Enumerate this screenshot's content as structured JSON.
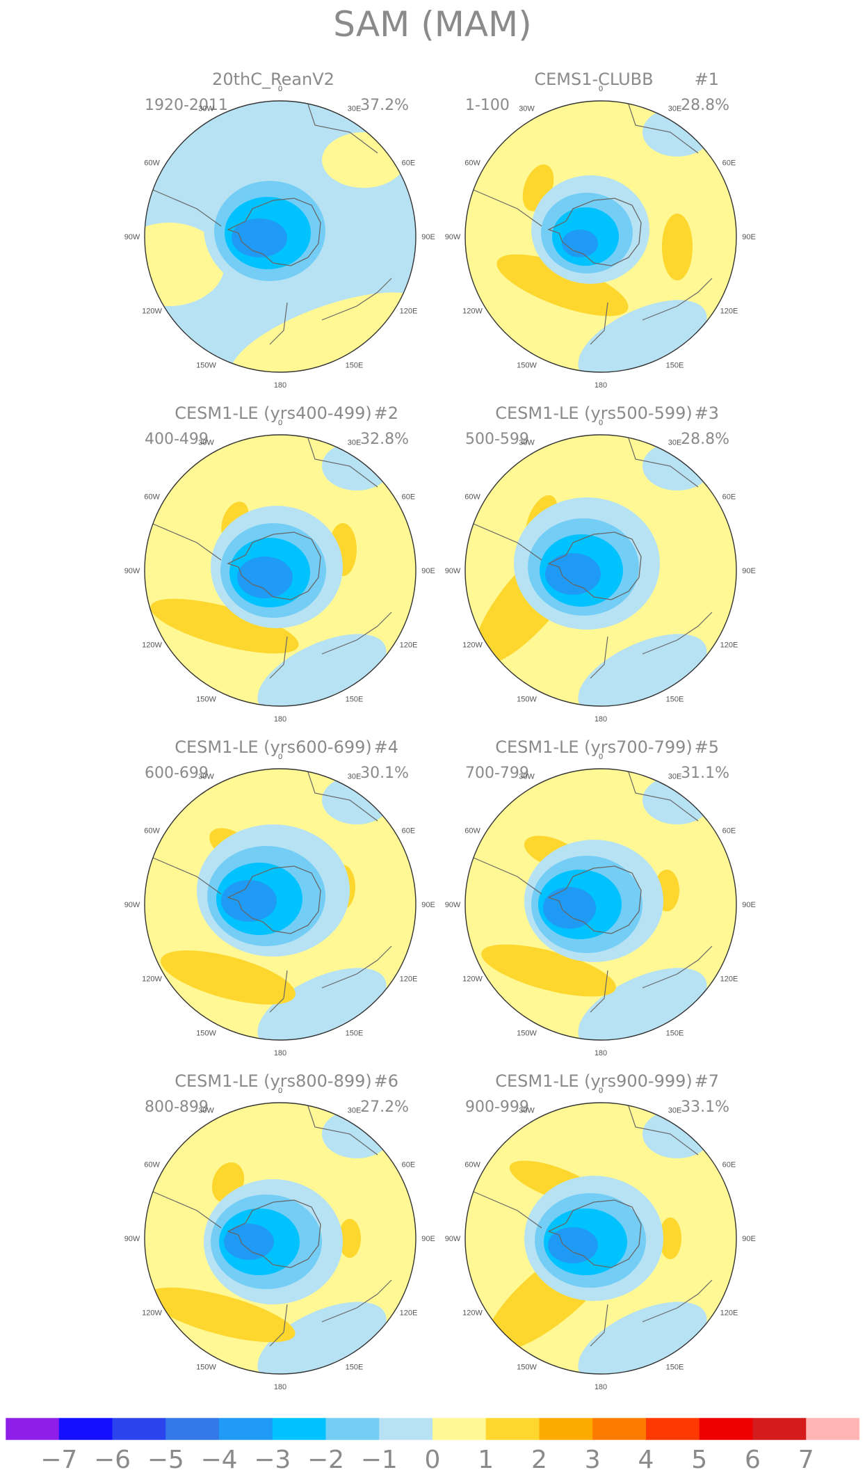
{
  "title": "SAM (MAM)",
  "lon_labels": [
    "0",
    "30E",
    "60E",
    "90E",
    "120E",
    "150E",
    "180",
    "150W",
    "120W",
    "90W",
    "60W",
    "30W"
  ],
  "colorbar": {
    "ticks": [
      "−7",
      "−6",
      "−5",
      "−4",
      "−3",
      "−2",
      "−1",
      "0",
      "1",
      "2",
      "3",
      "4",
      "5",
      "6",
      "7"
    ],
    "colors": [
      "#8f1fe8",
      "#1410ff",
      "#2b45ee",
      "#3478ea",
      "#1f9bf5",
      "#00c2ff",
      "#73cdf5",
      "#b7e2f3",
      "#fff894",
      "#fdd62e",
      "#fdaa00",
      "#fe7b00",
      "#ff3a00",
      "#ee0000",
      "#d41c1c",
      "#ffb4b4"
    ]
  },
  "panels": [
    {
      "title": "20thC_ReanV2",
      "tag": "",
      "period": "1920-2011",
      "variance": "37.2%"
    },
    {
      "title": "CEMS1-CLUBB",
      "tag": "#1",
      "period": "1-100",
      "variance": "28.8%"
    },
    {
      "title": "CESM1-LE (yrs400-499)",
      "tag": "#2",
      "period": "400-499",
      "variance": "32.8%"
    },
    {
      "title": "CESM1-LE (yrs500-599)",
      "tag": "#3",
      "period": "500-599",
      "variance": "28.8%"
    },
    {
      "title": "CESM1-LE (yrs600-699)",
      "tag": "#4",
      "period": "600-699",
      "variance": "30.1%"
    },
    {
      "title": "CESM1-LE (yrs700-799)",
      "tag": "#5",
      "period": "700-799",
      "variance": "31.1%"
    },
    {
      "title": "CESM1-LE (yrs800-899)",
      "tag": "#6",
      "period": "800-899",
      "variance": "27.2%"
    },
    {
      "title": "CESM1-LE (yrs900-999)",
      "tag": "#7",
      "period": "900-999",
      "variance": "33.1%"
    }
  ]
}
